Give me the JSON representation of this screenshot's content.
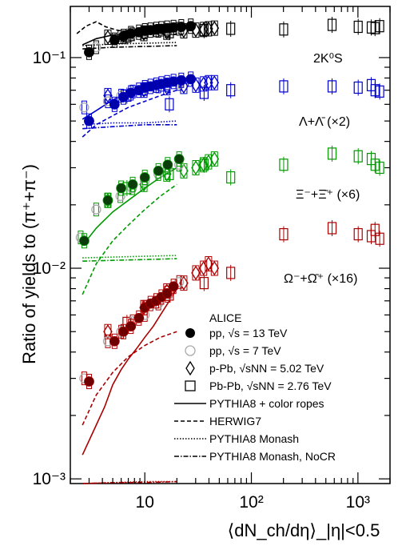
{
  "chart_data": {
    "type": "scatter",
    "x_scale": "log",
    "y_scale": "log",
    "xlim": [
      2,
      2000
    ],
    "ylim": [
      0.00095,
      0.175
    ],
    "xlabel": "⟨dN_ch/dη⟩_|η|<0.5",
    "ylabel": "Ratio of yields to (π⁺+π⁻)",
    "x_ticks": [
      "10",
      "10²",
      "10³"
    ],
    "y_ticks": [
      "10⁻³",
      "10⁻²",
      "10⁻¹"
    ],
    "series_labels": [
      {
        "id": "k0s",
        "text": "2K⁰S",
        "color": "#000000"
      },
      {
        "id": "lambda",
        "text": "Λ+Λ̄ (×2)",
        "color": "#0000cc"
      },
      {
        "id": "xi",
        "text": "Ξ⁻+Ξ̄⁺ (×6)",
        "color": "#009900"
      },
      {
        "id": "omega",
        "text": "Ω⁻+Ω̄⁺ (×16)",
        "color": "#aa0000"
      }
    ],
    "legend": {
      "title": "ALICE",
      "entries": [
        {
          "marker": "filled-circle",
          "text": "pp, √s = 13 TeV"
        },
        {
          "marker": "open-circle",
          "text": "pp, √s = 7 TeV"
        },
        {
          "marker": "open-diamond",
          "text": "p-Pb, √sNN = 5.02 TeV"
        },
        {
          "marker": "open-square",
          "text": "Pb-Pb, √sNN = 2.76 TeV"
        },
        {
          "line": "solid",
          "text": "PYTHIA8 + color ropes"
        },
        {
          "line": "dashed",
          "text": "HERWIG7"
        },
        {
          "line": "dotted",
          "text": "PYTHIA8 Monash"
        },
        {
          "line": "dashdot",
          "text": "PYTHIA8 Monash, NoCR"
        }
      ]
    },
    "series": [
      {
        "name": "2K0S",
        "color": "#000000",
        "pp13": {
          "x": [
            3.0,
            5.2,
            6.3,
            7.4,
            8.8,
            10.0,
            11.3,
            12.8,
            14.3,
            16.2,
            18.6,
            22.0,
            27.0
          ],
          "y": [
            0.106,
            0.121,
            0.126,
            0.13,
            0.132,
            0.134,
            0.135,
            0.136,
            0.137,
            0.138,
            0.139,
            0.14,
            0.141
          ]
        },
        "pp7": {
          "x": [
            3.5,
            5.9,
            7.6,
            10.0,
            13.4,
            16.4,
            21.0
          ],
          "y": [
            0.112,
            0.125,
            0.129,
            0.132,
            0.134,
            0.135,
            0.137
          ]
        },
        "pPb": {
          "x": [
            4.5,
            9.8,
            16.1,
            23.2,
            30.1,
            35.6,
            39.6,
            45.0
          ],
          "y": [
            0.125,
            0.13,
            0.132,
            0.134,
            0.135,
            0.136,
            0.137,
            0.138
          ]
        },
        "PbPb": {
          "x": [
            6.8,
            17.0,
            36.0,
            64.0,
            201.0,
            572.0,
            1006.0,
            1333.0,
            1447.0,
            1601.0
          ],
          "y": [
            0.126,
            0.132,
            0.135,
            0.137,
            0.136,
            0.143,
            0.14,
            0.139,
            0.138,
            0.141
          ]
        },
        "ropes": {
          "x": [
            2.6,
            3.5,
            5.0,
            7.0,
            10.0,
            14.0,
            20.0
          ],
          "y": [
            0.115,
            0.123,
            0.128,
            0.131,
            0.133,
            0.134,
            0.135
          ]
        },
        "herwig": {
          "x": [
            2.3,
            2.8,
            3.5,
            4.3,
            5.5,
            7.0,
            10.0,
            14.0,
            20.0
          ],
          "y": [
            0.13,
            0.141,
            0.148,
            0.14,
            0.135,
            0.132,
            0.13,
            0.129,
            0.129
          ]
        },
        "monash": {
          "x": [
            2.6,
            5.0,
            10.0,
            20.0
          ],
          "y": [
            0.114,
            0.116,
            0.117,
            0.118
          ]
        },
        "nocr": {
          "x": [
            2.6,
            5.0,
            10.0,
            20.0
          ],
          "y": [
            0.11,
            0.112,
            0.113,
            0.114
          ]
        }
      },
      {
        "name": "Λ+Λ̄ (×2)",
        "color": "#0000cc",
        "pp13": {
          "x": [
            3.0,
            5.2,
            6.3,
            7.4,
            8.8,
            10.0,
            11.3,
            12.8,
            14.3,
            16.2,
            18.6,
            22.0,
            27.0
          ],
          "y": [
            0.05,
            0.06,
            0.065,
            0.068,
            0.07,
            0.072,
            0.073,
            0.074,
            0.075,
            0.076,
            0.077,
            0.078,
            0.079
          ]
        },
        "pp7": {
          "x": [
            2.7,
            4.5,
            6.0,
            7.7,
            10.0,
            13.4,
            16.4,
            21.0
          ],
          "y": [
            0.058,
            0.062,
            0.066,
            0.069,
            0.071,
            0.073,
            0.074,
            0.075
          ]
        },
        "pPb": {
          "x": [
            4.5,
            9.8,
            16.1,
            23.2,
            30.1,
            35.6,
            39.6,
            45.0
          ],
          "y": [
            0.066,
            0.07,
            0.072,
            0.073,
            0.074,
            0.075,
            0.076,
            0.076
          ]
        },
        "PbPb": {
          "x": [
            6.8,
            17.0,
            36.0,
            64.0,
            201.0,
            572.0,
            1006.0,
            1333.0,
            1447.0,
            1601.0
          ],
          "y": [
            0.066,
            0.06,
            0.068,
            0.07,
            0.073,
            0.073,
            0.072,
            0.074,
            0.07,
            0.069
          ]
        },
        "ropes": {
          "x": [
            2.6,
            3.5,
            5.0,
            7.0,
            10.0,
            14.0,
            20.0
          ],
          "y": [
            0.051,
            0.056,
            0.063,
            0.068,
            0.072,
            0.075,
            0.078
          ]
        },
        "herwig": {
          "x": [
            2.6,
            3.5,
            5.0,
            7.0,
            10.0,
            14.0,
            20.0
          ],
          "y": [
            0.042,
            0.048,
            0.053,
            0.058,
            0.062,
            0.066,
            0.07
          ]
        },
        "monash": {
          "x": [
            2.6,
            5.0,
            10.0,
            20.0
          ],
          "y": [
            0.048,
            0.049,
            0.049,
            0.05
          ]
        },
        "nocr": {
          "x": [
            2.6,
            5.0,
            10.0,
            20.0
          ],
          "y": [
            0.046,
            0.047,
            0.048,
            0.048
          ]
        }
      },
      {
        "name": "Ξ⁻+Ξ̄⁺ (×6)",
        "color": "#009900",
        "pp13": {
          "x": [
            2.7,
            4.5,
            6.0,
            7.7,
            10.0,
            13.4,
            16.4,
            21.0
          ],
          "y": [
            0.0135,
            0.021,
            0.024,
            0.025,
            0.027,
            0.029,
            0.031,
            0.033
          ]
        },
        "pp7": {
          "x": [
            2.5,
            3.5,
            5.9,
            7.6,
            10.0,
            13.4,
            16.4,
            21.0
          ],
          "y": [
            0.014,
            0.019,
            0.022,
            0.024,
            0.026,
            0.028,
            0.03,
            0.031
          ]
        },
        "pPb": {
          "x": [
            4.5,
            9.8,
            16.1,
            23.2,
            30.1,
            35.6,
            39.6,
            45.0
          ],
          "y": [
            0.021,
            0.025,
            0.028,
            0.029,
            0.03,
            0.031,
            0.032,
            0.033
          ]
        },
        "PbPb": {
          "x": [
            6.8,
            17.0,
            36.0,
            64.0,
            201.0,
            572.0,
            1006.0,
            1333.0,
            1447.0,
            1601.0
          ],
          "y": [
            0.024,
            0.028,
            0.031,
            0.027,
            0.031,
            0.035,
            0.034,
            0.033,
            0.031,
            0.03
          ]
        },
        "ropes": {
          "x": [
            2.6,
            3.5,
            5.0,
            7.0,
            10.0,
            14.0,
            20.0
          ],
          "y": [
            0.0128,
            0.0155,
            0.0185,
            0.021,
            0.024,
            0.027,
            0.03
          ]
        },
        "herwig": {
          "x": [
            2.6,
            3.5,
            5.0,
            7.0,
            10.0,
            14.0,
            20.0
          ],
          "y": [
            0.0075,
            0.0105,
            0.0135,
            0.016,
            0.019,
            0.022,
            0.025
          ]
        },
        "monash": {
          "x": [
            2.6,
            5.0,
            10.0,
            20.0
          ],
          "y": [
            0.0112,
            0.0113,
            0.0114,
            0.0115
          ]
        },
        "nocr": {
          "x": [
            2.6,
            5.0,
            10.0,
            20.0
          ],
          "y": [
            0.0108,
            0.0109,
            0.011,
            0.0111
          ]
        }
      },
      {
        "name": "Ω⁻+Ω̄⁺ (×16)",
        "color": "#aa0000",
        "pp13": {
          "x": [
            3.0,
            5.2,
            6.3,
            7.4,
            8.8,
            10.0,
            11.3,
            12.8,
            14.3,
            16.2,
            18.6
          ],
          "y": [
            0.0029,
            0.0045,
            0.005,
            0.0053,
            0.0058,
            0.0065,
            0.0068,
            0.007,
            0.0073,
            0.0076,
            0.0082
          ]
        },
        "pp7": {
          "x": [
            2.7,
            4.5,
            6.0,
            7.7,
            10.0,
            13.4,
            16.4,
            21.0
          ],
          "y": [
            0.003,
            0.0045,
            0.005,
            0.0056,
            0.006,
            0.0068,
            0.0074,
            0.0086
          ]
        },
        "pPb": {
          "x": [
            4.5,
            9.8,
            16.1,
            23.2,
            30.1,
            35.6,
            39.6,
            45.0
          ],
          "y": [
            0.005,
            0.0065,
            0.0078,
            0.0085,
            0.0095,
            0.01,
            0.0105,
            0.01
          ]
        },
        "PbPb": {
          "x": [
            6.8,
            17.0,
            36.0,
            64.0,
            201.0,
            572.0,
            1006.0,
            1333.0,
            1447.0,
            1601.0
          ],
          "y": [
            0.0055,
            0.0075,
            0.0085,
            0.0095,
            0.0145,
            0.0155,
            0.0145,
            0.0142,
            0.0152,
            0.0138
          ]
        },
        "ropes": {
          "x": [
            2.6,
            3.5,
            4.2,
            5.0,
            6.0,
            7.0,
            8.5,
            10.0,
            12.0,
            14.0,
            17.0,
            20.0
          ],
          "y": [
            0.0013,
            0.0018,
            0.0022,
            0.0028,
            0.0033,
            0.0037,
            0.0042,
            0.0047,
            0.0053,
            0.006,
            0.007,
            0.008
          ]
        },
        "herwig": {
          "x": [
            2.6,
            3.5,
            5.0,
            7.0,
            10.0,
            14.0,
            20.0
          ],
          "y": [
            0.0018,
            0.0025,
            0.0032,
            0.0038,
            0.0043,
            0.0047,
            0.005
          ]
        },
        "monash": {
          "x": [
            2.6,
            5.0,
            10.0,
            20.0
          ],
          "y": [
            0.00095,
            0.00096,
            0.00097,
            0.00097
          ]
        },
        "nocr": {
          "x": [
            2.6,
            5.0,
            10.0,
            20.0
          ],
          "y": [
            0.00095,
            0.00096,
            0.00096,
            0.00097
          ]
        }
      }
    ]
  }
}
